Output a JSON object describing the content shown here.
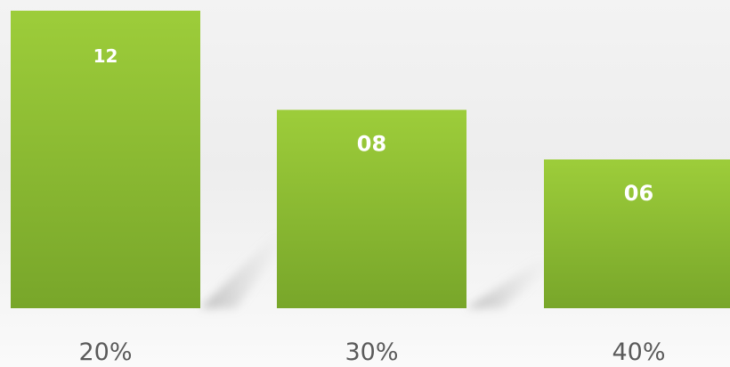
{
  "chart_data": {
    "type": "bar",
    "categories": [
      "20%",
      "30%",
      "40%"
    ],
    "values": [
      12,
      8,
      6
    ],
    "value_labels": [
      "12",
      "08",
      "06"
    ],
    "title": "",
    "xlabel": "",
    "ylabel": "",
    "ylim": [
      0,
      12
    ],
    "grid": false,
    "legend": "none",
    "colors": {
      "bar_top": "#9dcd3a",
      "bar_bottom": "#78a62a",
      "value_text": "#ffffff",
      "category_text": "#5a5a5a"
    }
  }
}
